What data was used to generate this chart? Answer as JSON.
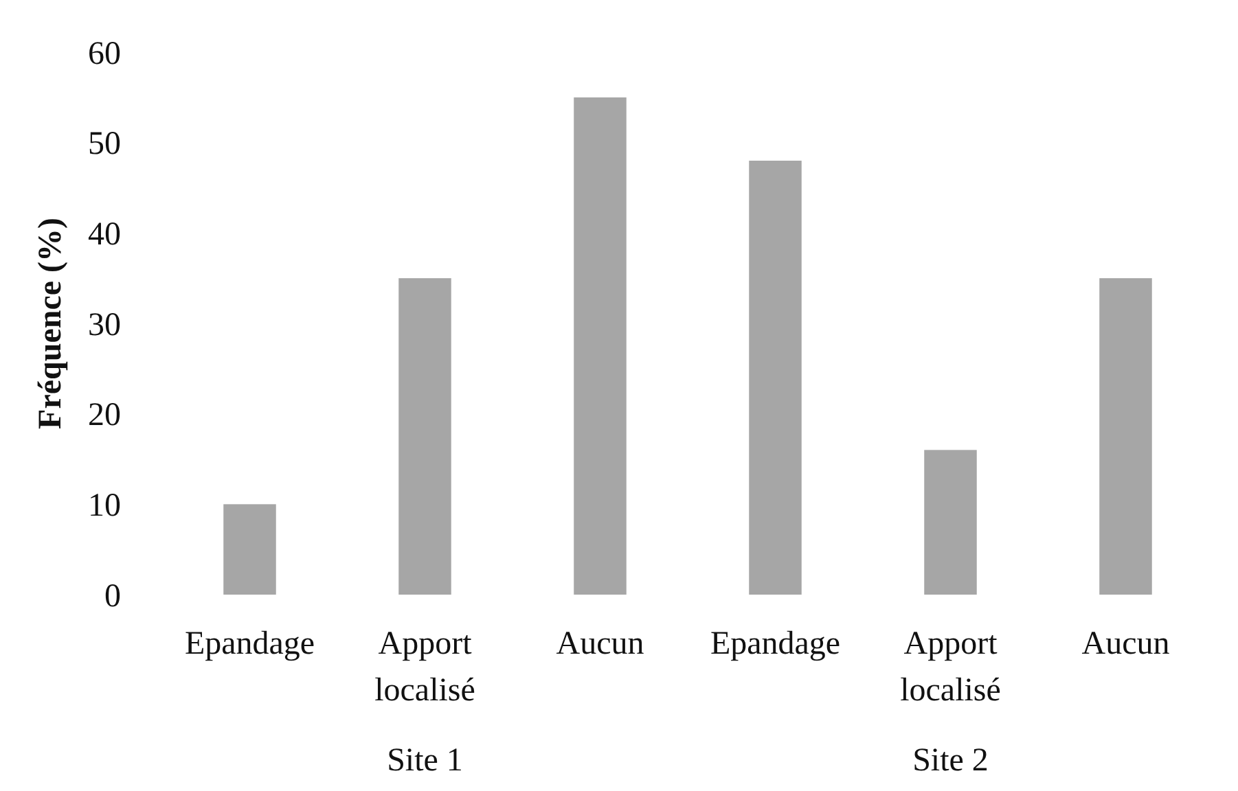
{
  "chart_data": {
    "type": "bar",
    "ylabel": "Fréquence (%)",
    "categories": [
      "Epandage",
      "Apport localisé",
      "Aucun",
      "Epandage",
      "Apport localisé",
      "Aucun"
    ],
    "values": [
      10,
      35,
      55,
      48,
      16,
      35
    ],
    "color": "#a6a6a6",
    "ylim": [
      0,
      60
    ],
    "yticks": [
      0,
      10,
      20,
      30,
      40,
      50,
      60
    ],
    "grid": false,
    "annotations": [
      "Site 1",
      "Site 2"
    ]
  }
}
